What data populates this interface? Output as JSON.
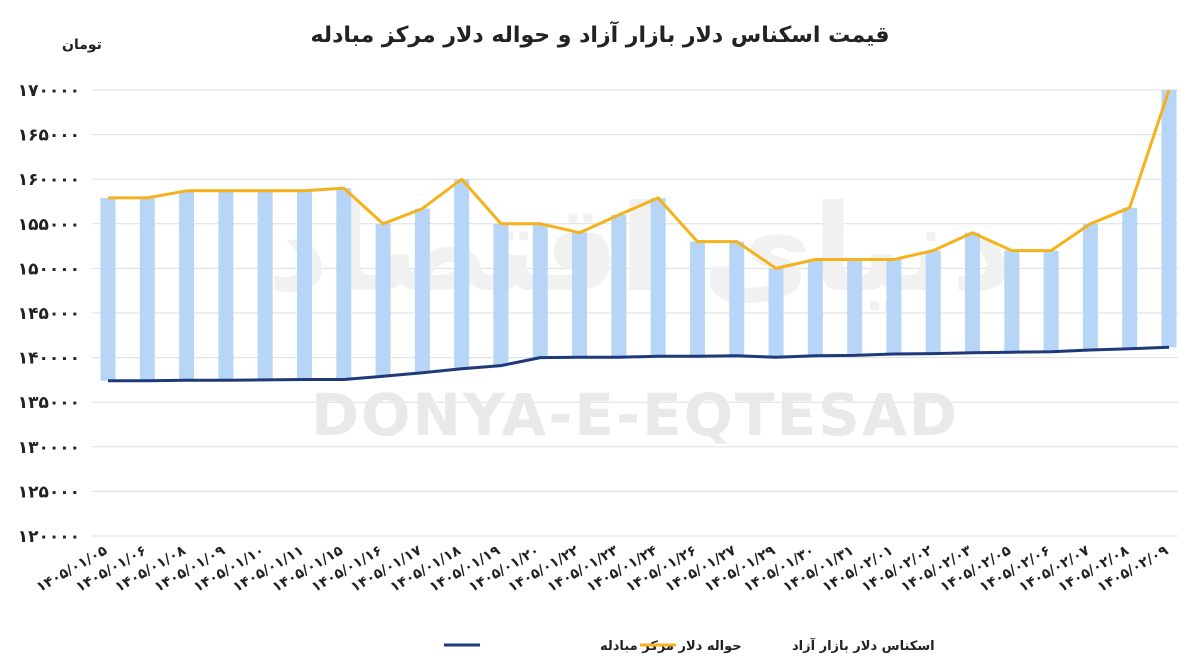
{
  "chart_data": {
    "type": "line",
    "title": "قیمت اسکناس دلار بازار آزاد و حواله دلار مرکز مبادله",
    "ylabel": "تومان",
    "xlabel": "",
    "ylim": [
      120000,
      170000
    ],
    "y_ticks": [
      {
        "value": 120000,
        "label": "۱۲۰۰۰۰"
      },
      {
        "value": 125000,
        "label": "۱۲۵۰۰۰"
      },
      {
        "value": 130000,
        "label": "۱۳۰۰۰۰"
      },
      {
        "value": 135000,
        "label": "۱۳۵۰۰۰"
      },
      {
        "value": 140000,
        "label": "۱۴۰۰۰۰"
      },
      {
        "value": 145000,
        "label": "۱۴۵۰۰۰"
      },
      {
        "value": 150000,
        "label": "۱۵۰۰۰۰"
      },
      {
        "value": 155000,
        "label": "۱۵۵۰۰۰"
      },
      {
        "value": 160000,
        "label": "۱۶۰۰۰۰"
      },
      {
        "value": 165000,
        "label": "۱۶۵۰۰۰"
      },
      {
        "value": 170000,
        "label": "۱۷۰۰۰۰"
      }
    ],
    "grid": true,
    "legend_position": "bottom",
    "categories": [
      "۱۴۰۵/۰۱/۰۵",
      "۱۴۰۵/۰۱/۰۶",
      "۱۴۰۵/۰۱/۰۸",
      "۱۴۰۵/۰۱/۰۹",
      "۱۴۰۵/۰۱/۱۰",
      "۱۴۰۵/۰۱/۱۱",
      "۱۴۰۵/۰۱/۱۵",
      "۱۴۰۵/۰۱/۱۶",
      "۱۴۰۵/۰۱/۱۷",
      "۱۴۰۵/۰۱/۱۸",
      "۱۴۰۵/۰۱/۱۹",
      "۱۴۰۵/۰۱/۲۰",
      "۱۴۰۵/۰۱/۲۲",
      "۱۴۰۵/۰۱/۲۳",
      "۱۴۰۵/۰۱/۲۴",
      "۱۴۰۵/۰۱/۲۶",
      "۱۴۰۵/۰۱/۲۷",
      "۱۴۰۵/۰۱/۲۹",
      "۱۴۰۵/۰۱/۳۰",
      "۱۴۰۵/۰۱/۳۱",
      "۱۴۰۵/۰۲/۰۱",
      "۱۴۰۵/۰۲/۰۲",
      "۱۴۰۵/۰۲/۰۳",
      "۱۴۰۵/۰۲/۰۵",
      "۱۴۰۵/۰۲/۰۶",
      "۱۴۰۵/۰۲/۰۷",
      "۱۴۰۵/۰۲/۰۸",
      "۱۴۰۵/۰۲/۰۹"
    ],
    "series": [
      {
        "name": "حواله دلار مرکز مبادله",
        "color": "#1f3a7a",
        "values": [
          137400,
          137400,
          137450,
          137450,
          137500,
          137550,
          137550,
          137900,
          138300,
          138750,
          139100,
          140000,
          140050,
          140050,
          140150,
          140150,
          140200,
          140050,
          140200,
          140250,
          140400,
          140450,
          140550,
          140600,
          140650,
          140850,
          141000,
          141150
        ]
      },
      {
        "name": "اسکناس دلار بازار آزاد",
        "color": "#f6b21b",
        "values": [
          157900,
          157900,
          158700,
          158700,
          158700,
          158700,
          159000,
          155000,
          156700,
          160000,
          155000,
          155000,
          154000,
          156000,
          157900,
          153000,
          153000,
          150000,
          151000,
          151000,
          151000,
          152000,
          154000,
          152000,
          152000,
          155000,
          156800,
          170000
        ]
      }
    ],
    "range_bar_color": "#b7d6f7"
  },
  "watermark": {
    "text": "DONYA-E-EQTESAD",
    "logo_text": "دنیای اقتصاد"
  }
}
